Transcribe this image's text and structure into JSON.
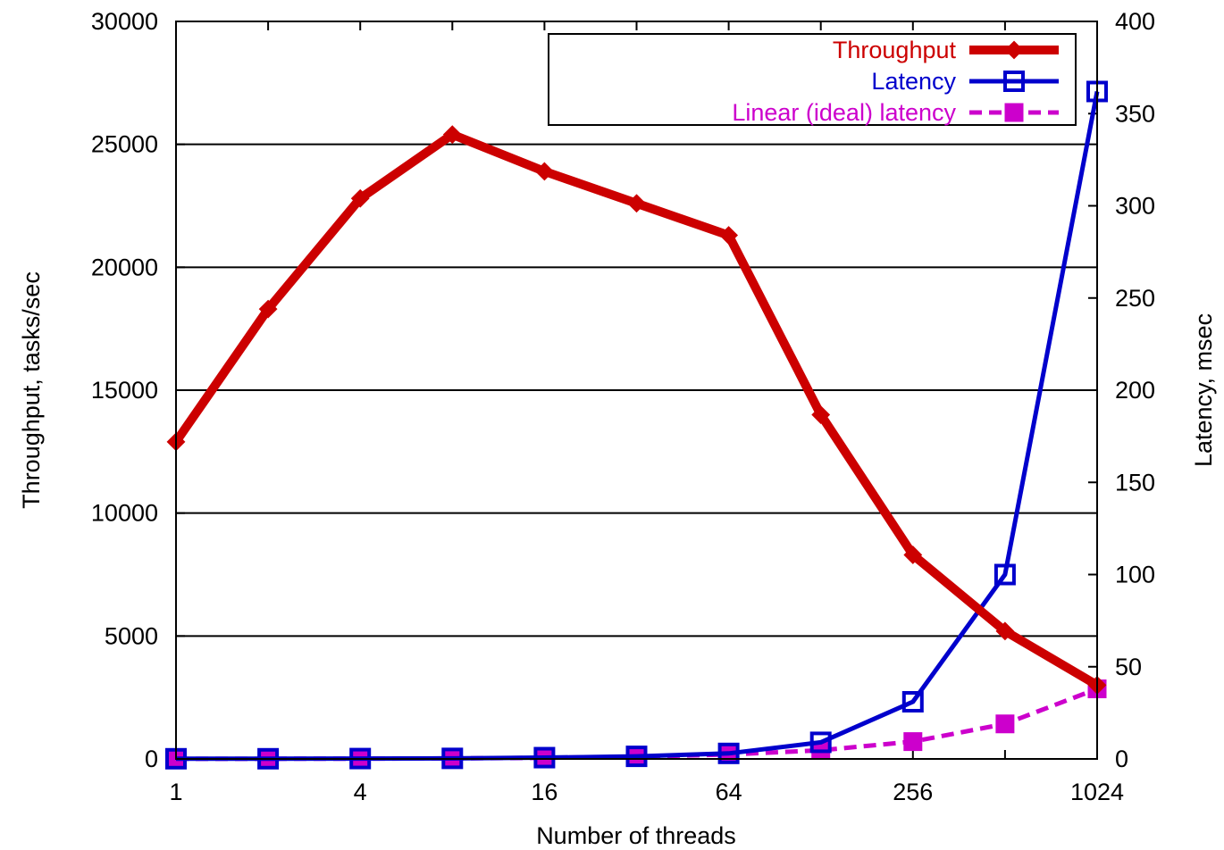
{
  "chart_data": {
    "type": "line",
    "xlabel": "Number of threads",
    "ylabel": "Throughput, tasks/sec",
    "y2label": "Latency, msec",
    "x_scale": "log2",
    "xlim": [
      1,
      1024
    ],
    "ylim": [
      0,
      30000
    ],
    "y2lim": [
      0,
      400
    ],
    "x_ticks": [
      1,
      4,
      16,
      64,
      256,
      1024
    ],
    "y_ticks": [
      0,
      5000,
      10000,
      15000,
      20000,
      25000,
      30000
    ],
    "y2_ticks": [
      0,
      50,
      100,
      150,
      200,
      250,
      300,
      350,
      400
    ],
    "grid": "horizontal",
    "legend_position": "top-right",
    "series": [
      {
        "name": "Throughput",
        "axis": "left",
        "color": "#cc0000",
        "style": "solid",
        "marker": "filled-diamond",
        "x": [
          1,
          2,
          4,
          8,
          16,
          32,
          64,
          128,
          256,
          512,
          1024
        ],
        "values": [
          12900,
          18300,
          22800,
          25400,
          23900,
          22600,
          21300,
          14000,
          8300,
          5200,
          3000
        ]
      },
      {
        "name": "Latency",
        "axis": "right",
        "color": "#0000cc",
        "style": "solid",
        "marker": "open-square",
        "x": [
          1,
          2,
          4,
          8,
          16,
          32,
          64,
          128,
          256,
          512,
          1024
        ],
        "values": [
          0.1,
          0.1,
          0.2,
          0.3,
          0.7,
          1.4,
          3,
          9,
          31,
          100,
          362
        ]
      },
      {
        "name": "Linear (ideal) latency",
        "axis": "right",
        "color": "#cc00cc",
        "style": "dashed",
        "marker": "filled-square",
        "x": [
          1,
          2,
          4,
          8,
          16,
          32,
          64,
          128,
          256,
          512,
          1024
        ],
        "values": [
          0.04,
          0.08,
          0.15,
          0.3,
          0.6,
          1.2,
          2.4,
          4.7,
          9.4,
          19,
          38
        ]
      }
    ]
  }
}
